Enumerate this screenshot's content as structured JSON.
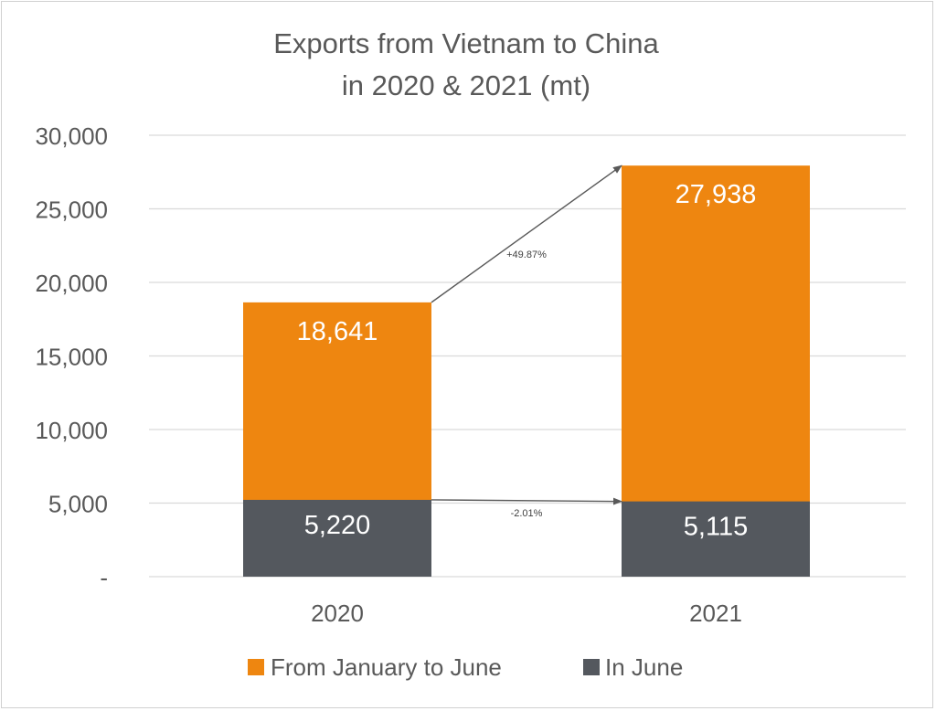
{
  "chart_data": {
    "type": "bar",
    "stacked": false,
    "title_lines": [
      "Exports from Vietnam to China",
      "in 2020 & 2021 (mt)"
    ],
    "categories": [
      "2020",
      "2021"
    ],
    "series": [
      {
        "name": "From January to June",
        "values": [
          18641,
          27938
        ],
        "labels": [
          "18,641",
          "27,938"
        ],
        "color": "#ee8610"
      },
      {
        "name": "In June",
        "values": [
          5220,
          5115
        ],
        "labels": [
          "5,220",
          "5,115"
        ],
        "color": "#54585e"
      }
    ],
    "ylim": [
      0,
      30000
    ],
    "y_ticks": [
      {
        "value": 0,
        "label": "-"
      },
      {
        "value": 5000,
        "label": "5,000"
      },
      {
        "value": 10000,
        "label": "10,000"
      },
      {
        "value": 15000,
        "label": "15,000"
      },
      {
        "value": 20000,
        "label": "20,000"
      },
      {
        "value": 25000,
        "label": "25,000"
      },
      {
        "value": 30000,
        "label": "30,000"
      }
    ],
    "grid": true,
    "legend_position": "bottom",
    "annotations": [
      {
        "series": "From January to June",
        "text": "+49.87%"
      },
      {
        "series": "In June",
        "text": "-2.01%"
      }
    ]
  }
}
